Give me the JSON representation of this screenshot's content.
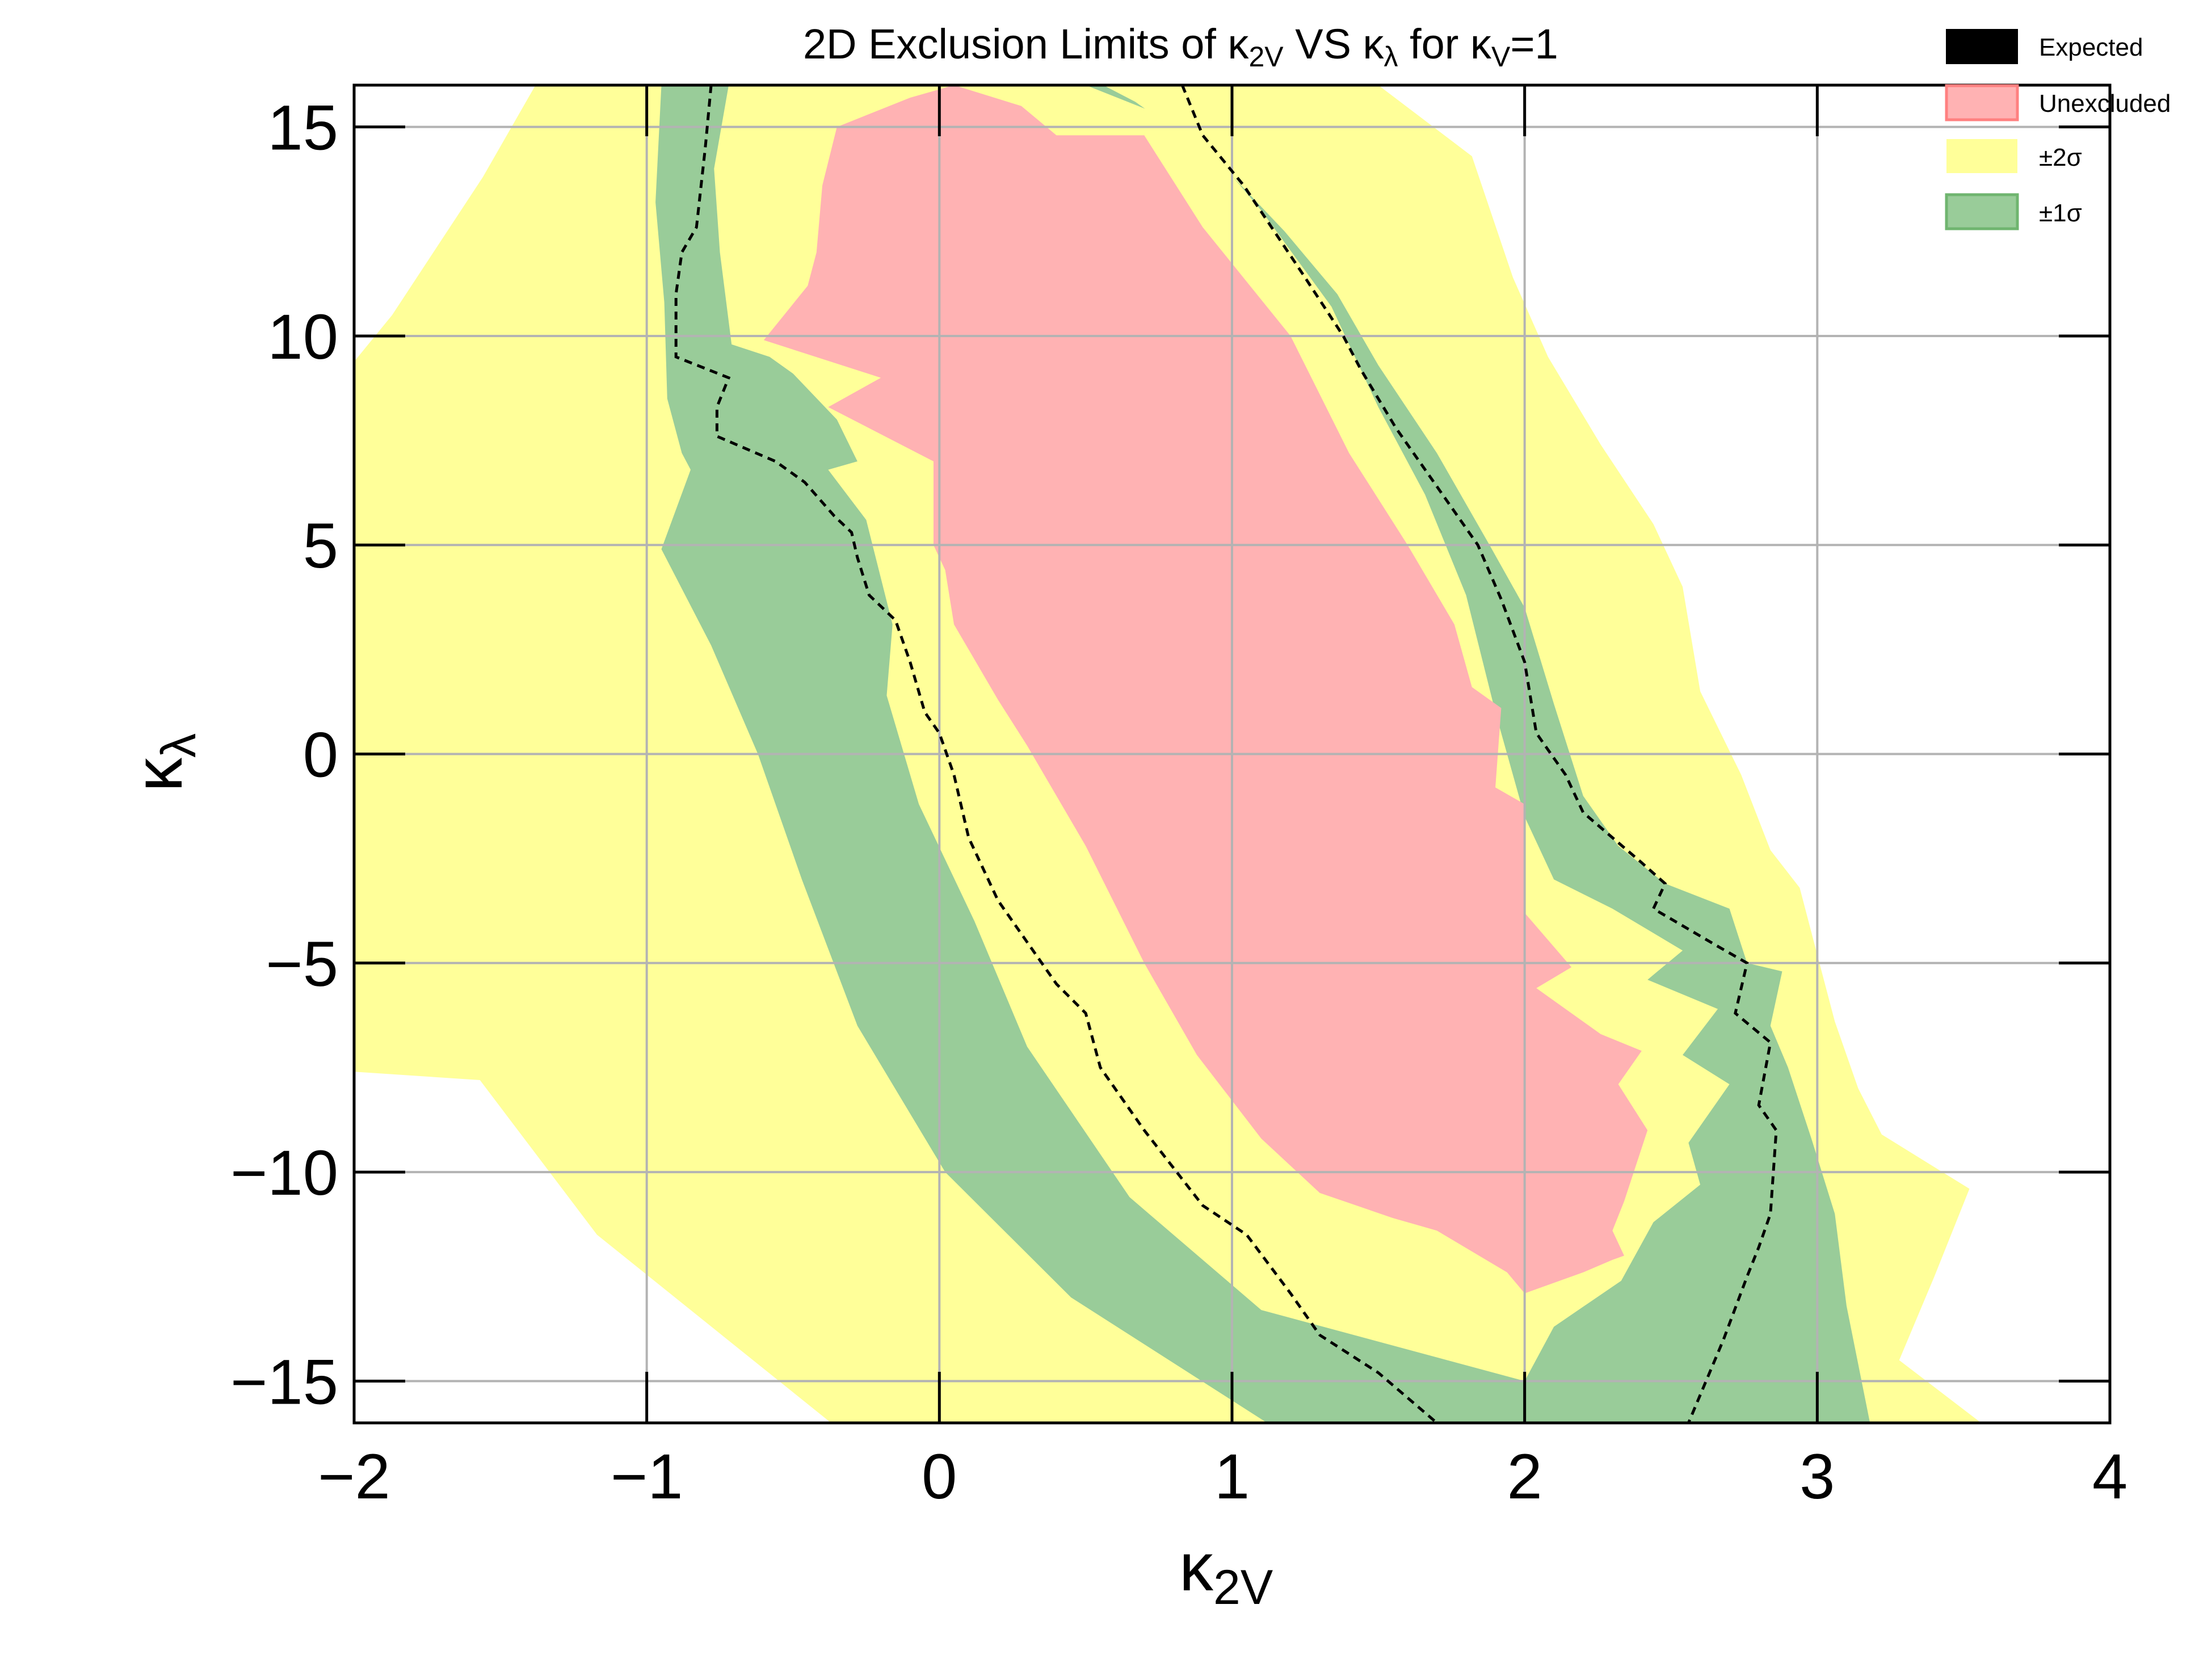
{
  "chart_data": {
    "type": "area",
    "title": {
      "prefix": "2D Exclusion Limits of κ",
      "sub1": "2V",
      "mid": " VS κ",
      "sub2": "λ",
      "mid2": " for κ",
      "sub3": "V",
      "suffix": "=1"
    },
    "xlabel": {
      "base": "κ",
      "sub": "2V"
    },
    "ylabel": {
      "base": "κ",
      "sub": "λ"
    },
    "xlim": [
      -2,
      4
    ],
    "ylim": [
      -16,
      16
    ],
    "xticks": [
      -2,
      -1,
      0,
      1,
      2,
      3,
      4
    ],
    "yticks": [
      -15,
      -10,
      -5,
      0,
      5,
      10,
      15
    ],
    "xtick_labels": [
      "−2",
      "−1",
      "0",
      "1",
      "2",
      "3",
      "4"
    ],
    "ytick_labels": [
      "−15",
      "−10",
      "−5",
      "0",
      "5",
      "10",
      "15"
    ],
    "grid": true,
    "legend_placement": "top-right",
    "legend": [
      {
        "label": "Expected",
        "color": "#000000"
      },
      {
        "label": "Unexcluded",
        "color": "#ffb2b3"
      },
      {
        "label": "±2σ",
        "color": "#ffff99"
      },
      {
        "label": "±1σ",
        "color": "#99cc99"
      }
    ],
    "regions": [
      {
        "name": "±2σ",
        "color": "#ffff99",
        "polygon": [
          [
            -1.56,
            13.8
          ],
          [
            -1.38,
            16
          ],
          [
            1.5,
            16
          ],
          [
            1.82,
            14.3
          ],
          [
            1.96,
            11.4
          ],
          [
            2.08,
            9.5
          ],
          [
            2.26,
            7.4
          ],
          [
            2.44,
            5.5
          ],
          [
            2.54,
            4.0
          ],
          [
            2.6,
            1.5
          ],
          [
            2.74,
            -0.5
          ],
          [
            2.84,
            -2.3
          ],
          [
            2.94,
            -3.2
          ],
          [
            3.0,
            -4.8
          ],
          [
            3.06,
            -6.4
          ],
          [
            3.14,
            -8.0
          ],
          [
            3.22,
            -9.1
          ],
          [
            3.52,
            -10.4
          ],
          [
            3.4,
            -12.5
          ],
          [
            3.28,
            -14.5
          ],
          [
            3.56,
            -16
          ],
          [
            -0.37,
            -16
          ],
          [
            -1.17,
            -11.5
          ],
          [
            -1.57,
            -7.8
          ],
          [
            -2.0,
            -7.6
          ],
          [
            -2.17,
            -0.4
          ],
          [
            -2.32,
            3.5
          ],
          [
            -2.38,
            5.2
          ],
          [
            -2.15,
            8.1
          ],
          [
            -1.87,
            10.5
          ]
        ]
      },
      {
        "name": "±1σ",
        "color": "#99cc99",
        "polygon": [
          [
            -0.95,
            16
          ],
          [
            0.56,
            16
          ],
          [
            0.67,
            15.6
          ],
          [
            0.95,
            14.2
          ],
          [
            1.18,
            12.5
          ],
          [
            1.36,
            11.0
          ],
          [
            1.5,
            9.3
          ],
          [
            1.7,
            7.2
          ],
          [
            1.88,
            5.0
          ],
          [
            2.0,
            3.5
          ],
          [
            2.1,
            1.2
          ],
          [
            2.2,
            -1.0
          ],
          [
            2.32,
            -2.2
          ],
          [
            2.48,
            -3.1
          ],
          [
            2.7,
            -3.7
          ],
          [
            2.76,
            -5.0
          ],
          [
            2.88,
            -5.2
          ],
          [
            2.84,
            -6.5
          ],
          [
            2.9,
            -7.5
          ],
          [
            2.98,
            -9.2
          ],
          [
            3.06,
            -11.0
          ],
          [
            3.1,
            -13.2
          ],
          [
            3.18,
            -16
          ],
          [
            1.12,
            -16
          ],
          [
            0.45,
            -13.0
          ],
          [
            0.02,
            -10.0
          ],
          [
            -0.28,
            -6.5
          ],
          [
            -0.47,
            -3.0
          ],
          [
            -0.62,
            0
          ],
          [
            -0.78,
            2.6
          ],
          [
            -0.95,
            4.9
          ],
          [
            -0.85,
            6.8
          ],
          [
            -0.88,
            7.2
          ],
          [
            -0.93,
            8.5
          ],
          [
            -0.94,
            10.8
          ],
          [
            -0.97,
            13.2
          ]
        ]
      },
      {
        "name": "±2σ",
        "color": "#ffff99",
        "polygon": [
          [
            -0.72,
            16
          ],
          [
            0.5,
            16
          ],
          [
            0.86,
            15.0
          ],
          [
            1.1,
            13.0
          ],
          [
            1.34,
            10.7
          ],
          [
            1.5,
            8.3
          ],
          [
            1.66,
            6.2
          ],
          [
            1.8,
            3.8
          ],
          [
            1.9,
            1.0
          ],
          [
            2.0,
            -1.5
          ],
          [
            2.1,
            -3.0
          ],
          [
            2.3,
            -3.7
          ],
          [
            2.54,
            -4.7
          ],
          [
            2.42,
            -5.4
          ],
          [
            2.66,
            -6.1
          ],
          [
            2.54,
            -7.2
          ],
          [
            2.7,
            -7.9
          ],
          [
            2.56,
            -9.3
          ],
          [
            2.6,
            -10.3
          ],
          [
            2.44,
            -11.2
          ],
          [
            2.33,
            -12.6
          ],
          [
            2.1,
            -13.7
          ],
          [
            2.0,
            -15.0
          ],
          [
            1.1,
            -13.3
          ],
          [
            0.65,
            -10.6
          ],
          [
            0.3,
            -7.0
          ],
          [
            0.12,
            -4.0
          ],
          [
            -0.07,
            -1.2
          ],
          [
            -0.18,
            1.4
          ],
          [
            -0.16,
            3.1
          ],
          [
            -0.25,
            5.6
          ],
          [
            -0.38,
            6.8
          ],
          [
            -0.28,
            7.0
          ],
          [
            -0.35,
            8.0
          ],
          [
            -0.5,
            9.1
          ],
          [
            -0.58,
            9.5
          ],
          [
            -0.71,
            9.8
          ],
          [
            -0.75,
            12.0
          ],
          [
            -0.77,
            14.0
          ]
        ]
      },
      {
        "name": "Unexcluded",
        "color": "#ffb2b3",
        "polygon": [
          [
            -0.35,
            15.0
          ],
          [
            -0.1,
            15.7
          ],
          [
            0.05,
            16.0
          ],
          [
            0.28,
            15.5
          ],
          [
            0.4,
            14.8
          ],
          [
            0.7,
            14.8
          ],
          [
            0.9,
            12.6
          ],
          [
            1.2,
            10.0
          ],
          [
            1.4,
            7.2
          ],
          [
            1.6,
            5.0
          ],
          [
            1.76,
            3.1
          ],
          [
            1.82,
            1.6
          ],
          [
            1.92,
            1.1
          ],
          [
            1.9,
            -0.8
          ],
          [
            2.0,
            -1.2
          ],
          [
            2.0,
            -3.8
          ],
          [
            2.16,
            -5.1
          ],
          [
            2.04,
            -5.6
          ],
          [
            2.26,
            -6.7
          ],
          [
            2.4,
            -7.1
          ],
          [
            2.32,
            -7.9
          ],
          [
            2.42,
            -9.0
          ],
          [
            2.34,
            -10.7
          ],
          [
            2.3,
            -11.4
          ],
          [
            2.34,
            -12.0
          ],
          [
            2.3,
            -12.1
          ],
          [
            2.2,
            -12.4
          ],
          [
            2.0,
            -12.9
          ],
          [
            1.94,
            -12.4
          ],
          [
            1.7,
            -11.4
          ],
          [
            1.55,
            -11.1
          ],
          [
            1.3,
            -10.5
          ],
          [
            1.1,
            -9.2
          ],
          [
            0.88,
            -7.2
          ],
          [
            0.7,
            -5.0
          ],
          [
            0.5,
            -2.2
          ],
          [
            0.3,
            0.2
          ],
          [
            0.2,
            1.3
          ],
          [
            0.1,
            2.5
          ],
          [
            0.05,
            3.1
          ],
          [
            0.02,
            4.4
          ],
          [
            -0.02,
            5.0
          ],
          [
            -0.02,
            7.0
          ],
          [
            -0.38,
            8.3
          ],
          [
            -0.2,
            9.0
          ],
          [
            -0.6,
            9.9
          ],
          [
            -0.45,
            11.2
          ],
          [
            -0.42,
            12.0
          ],
          [
            -0.4,
            13.6
          ]
        ]
      }
    ],
    "series": [
      {
        "name": "Expected",
        "color": "#000000",
        "style": "dashed",
        "points": [
          [
            -0.78,
            16.0
          ],
          [
            -0.8,
            14.5
          ],
          [
            -0.83,
            12.6
          ],
          [
            -0.88,
            12.0
          ],
          [
            -0.9,
            11.0
          ],
          [
            -0.9,
            9.5
          ],
          [
            -0.72,
            9.0
          ],
          [
            -0.76,
            8.3
          ],
          [
            -0.76,
            7.6
          ],
          [
            -0.56,
            7.0
          ],
          [
            -0.46,
            6.5
          ],
          [
            -0.36,
            5.7
          ],
          [
            -0.3,
            5.3
          ],
          [
            -0.28,
            4.7
          ],
          [
            -0.24,
            3.8
          ],
          [
            -0.15,
            3.2
          ],
          [
            -0.1,
            2.2
          ],
          [
            -0.05,
            1.0
          ],
          [
            0.0,
            0.5
          ],
          [
            0.05,
            -0.5
          ],
          [
            0.1,
            -2.0
          ],
          [
            0.2,
            -3.5
          ],
          [
            0.3,
            -4.5
          ],
          [
            0.4,
            -5.5
          ],
          [
            0.5,
            -6.2
          ],
          [
            0.55,
            -7.5
          ],
          [
            0.7,
            -9.0
          ],
          [
            0.9,
            -10.8
          ],
          [
            1.05,
            -11.5
          ],
          [
            1.2,
            -12.9
          ],
          [
            1.3,
            -13.9
          ],
          [
            1.5,
            -14.8
          ],
          [
            1.7,
            -16.0
          ]
        ]
      },
      {
        "name": "Expected",
        "color": "#000000",
        "style": "dashed",
        "points": [
          [
            0.83,
            16.0
          ],
          [
            0.9,
            14.8
          ],
          [
            1.04,
            13.6
          ],
          [
            1.24,
            11.5
          ],
          [
            1.38,
            10.0
          ],
          [
            1.44,
            9.2
          ],
          [
            1.56,
            7.8
          ],
          [
            1.7,
            6.4
          ],
          [
            1.84,
            5.0
          ],
          [
            1.92,
            3.7
          ],
          [
            2.0,
            2.2
          ],
          [
            2.04,
            0.5
          ],
          [
            2.14,
            -0.5
          ],
          [
            2.2,
            -1.4
          ],
          [
            2.4,
            -2.6
          ],
          [
            2.48,
            -3.1
          ],
          [
            2.44,
            -3.7
          ],
          [
            2.66,
            -4.6
          ],
          [
            2.76,
            -5.0
          ],
          [
            2.72,
            -6.2
          ],
          [
            2.84,
            -6.9
          ],
          [
            2.8,
            -8.4
          ],
          [
            2.86,
            -9.0
          ],
          [
            2.84,
            -11.0
          ],
          [
            2.8,
            -11.8
          ],
          [
            2.76,
            -12.5
          ],
          [
            2.68,
            -14.0
          ],
          [
            2.56,
            -16.0
          ]
        ]
      }
    ]
  }
}
